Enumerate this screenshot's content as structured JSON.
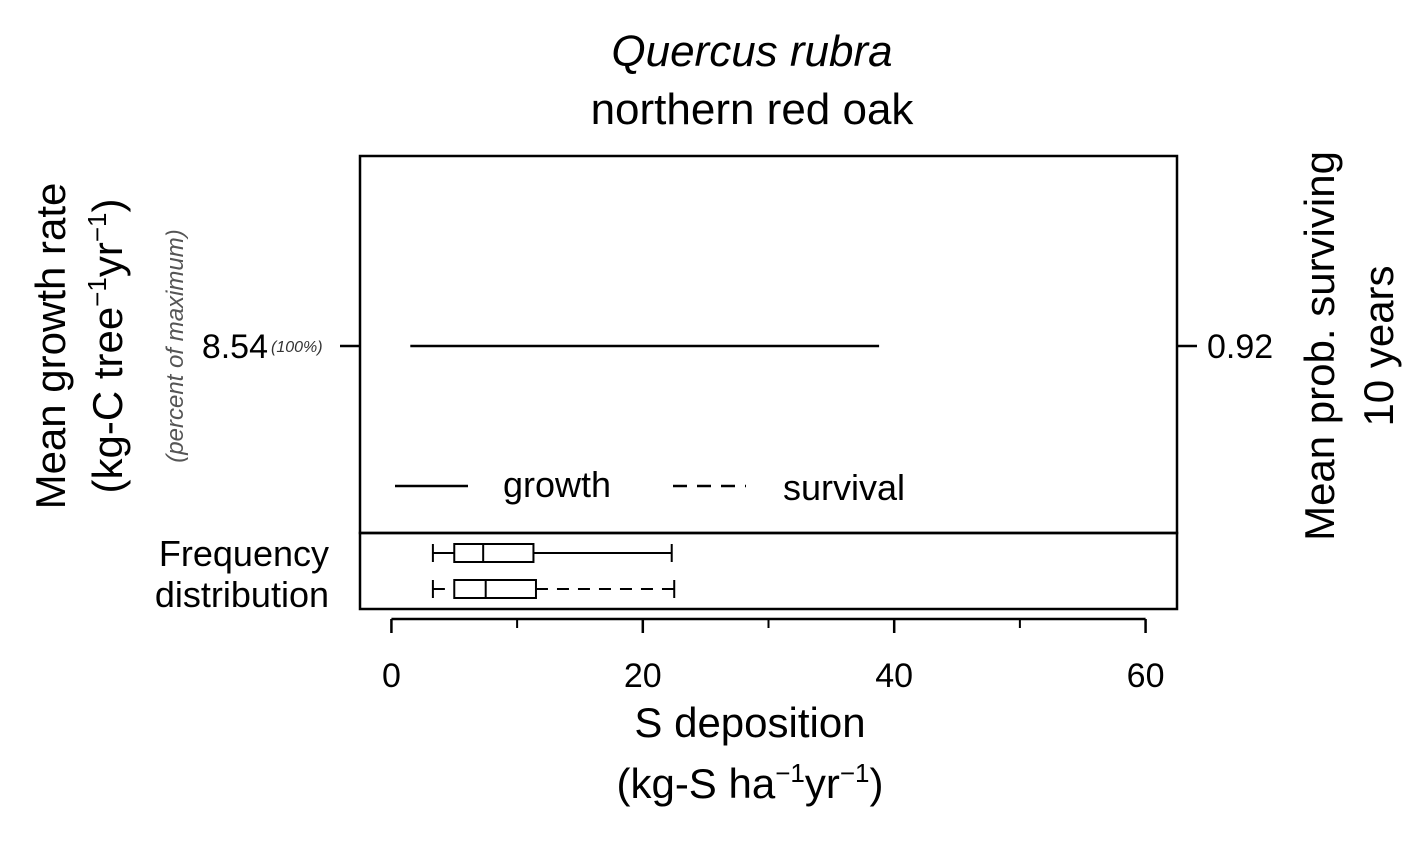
{
  "chart_data": {
    "type": "line",
    "title": "Quercus rubra",
    "subtitle": "northern red oak",
    "xlabel": {
      "main": "S deposition",
      "unit_prefix": "(kg-S ha",
      "unit_sup1": "−1",
      "unit_mid": "yr",
      "unit_sup2": "−1",
      "unit_suffix": ")"
    },
    "ylabel_left": {
      "line1": "Mean growth rate",
      "unit_prefix": "(kg-C tree",
      "unit_sup1": "−1",
      "unit_mid": "yr",
      "unit_sup2": "−1",
      "unit_suffix": ")",
      "note": "(percent of maximum)"
    },
    "ylabel_right": {
      "line1": "Mean prob. surviving",
      "line2": "10 years"
    },
    "xlim": [
      -2.5,
      62.5
    ],
    "x_ticks": [
      0,
      20,
      40,
      60
    ],
    "x_minor_ticks": [
      10,
      30,
      50
    ],
    "left_tick": {
      "value": "8.54",
      "percent": "(100%)"
    },
    "right_tick": {
      "value": "0.92"
    },
    "series": [
      {
        "name": "growth",
        "style": "solid",
        "x": [
          1.5,
          38.8
        ],
        "y": [
          8.54,
          8.54
        ]
      },
      {
        "name": "survival",
        "style": "dashed",
        "x": [],
        "y": []
      }
    ],
    "legend": {
      "placement": "bottom-left",
      "items": [
        {
          "label": "growth",
          "style": "solid"
        },
        {
          "label": "survival",
          "style": "dashed"
        }
      ]
    },
    "frequency_distribution": {
      "label_line1": "Frequency",
      "label_line2": "distribution",
      "boxes": [
        {
          "name": "growth",
          "style": "solid",
          "min": 3.3,
          "q1": 5.0,
          "median": 7.3,
          "q3": 11.3,
          "max": 22.3
        },
        {
          "name": "survival",
          "style": "dashed",
          "min": 3.3,
          "q1": 5.0,
          "median": 7.5,
          "q3": 11.5,
          "max": 22.5
        }
      ]
    }
  }
}
